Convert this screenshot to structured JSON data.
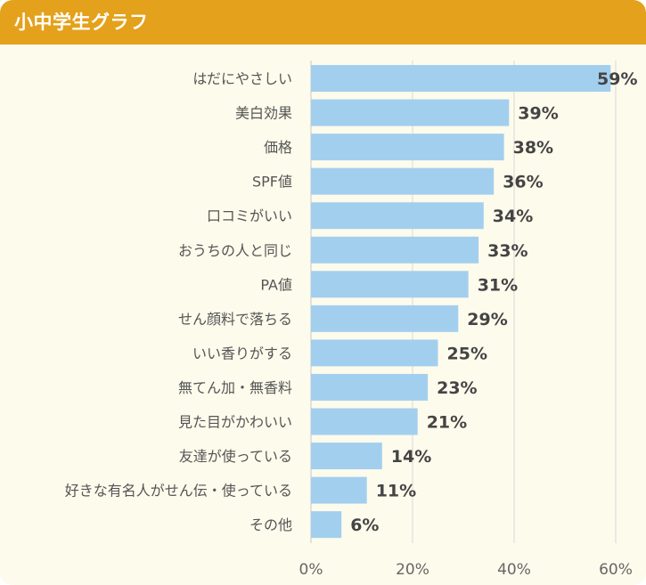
{
  "header": {
    "title": "小中学生グラフ"
  },
  "colors": {
    "header": "#e4a11b",
    "background": "#fdfbec",
    "bar": "#a3cfef",
    "grid": "#d8d8d8",
    "text": "#444444"
  },
  "chart_data": {
    "type": "bar",
    "orientation": "horizontal",
    "title": "小中学生グラフ",
    "categories": [
      "はだにやさしい",
      "美白効果",
      "価格",
      "SPF値",
      "口コミがいい",
      "おうちの人と同じ",
      "PA値",
      "せん顔料で落ちる",
      "いい香りがする",
      "無てん加・無香料",
      "見た目がかわいい",
      "友達が使っている",
      "好きな有名人がせん伝・使っている",
      "その他"
    ],
    "values": [
      59,
      39,
      38,
      36,
      34,
      33,
      31,
      29,
      25,
      23,
      21,
      14,
      11,
      6
    ],
    "value_labels": [
      "59%",
      "39%",
      "38%",
      "36%",
      "34%",
      "33%",
      "31%",
      "29%",
      "25%",
      "23%",
      "21%",
      "14%",
      "11%",
      "6%"
    ],
    "xlim": [
      0,
      60
    ],
    "xticks": [
      0,
      20,
      40,
      60
    ],
    "xtick_labels": [
      "0%",
      "20%",
      "40%",
      "60%"
    ],
    "xlabel": "",
    "ylabel": "",
    "grid": true
  }
}
